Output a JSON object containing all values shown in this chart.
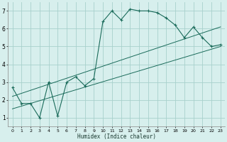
{
  "xlabel": "Humidex (Indice chaleur)",
  "bg_color": "#d7efed",
  "grid_color": "#a8d0cc",
  "line_color": "#1a6b5a",
  "xlim": [
    -0.5,
    23.5
  ],
  "ylim": [
    0.5,
    7.5
  ],
  "xticks": [
    0,
    1,
    2,
    3,
    4,
    5,
    6,
    7,
    8,
    9,
    10,
    11,
    12,
    13,
    14,
    15,
    16,
    17,
    18,
    19,
    20,
    21,
    22,
    23
  ],
  "yticks": [
    1,
    2,
    3,
    4,
    5,
    6,
    7
  ],
  "series1_x": [
    0,
    1,
    2,
    3,
    4,
    5,
    6,
    7,
    8,
    9,
    10,
    11,
    12,
    13,
    14,
    15,
    16,
    17,
    18,
    19,
    20,
    21,
    22,
    23
  ],
  "series1_y": [
    2.7,
    1.8,
    1.8,
    1.0,
    3.0,
    1.1,
    3.0,
    3.3,
    2.8,
    3.2,
    6.4,
    7.0,
    6.5,
    7.1,
    7.0,
    7.0,
    6.9,
    6.6,
    6.2,
    5.5,
    6.1,
    5.5,
    5.0,
    5.1
  ],
  "series2_x": [
    0,
    23
  ],
  "series2_y": [
    1.5,
    5.0
  ],
  "series3_x": [
    0,
    23
  ],
  "series3_y": [
    2.2,
    6.1
  ]
}
